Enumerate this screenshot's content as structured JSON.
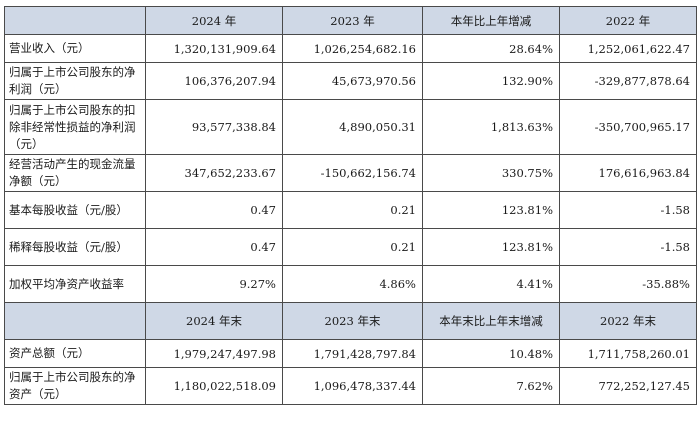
{
  "header_top": [
    "2024 年",
    "2023 年",
    "本年比上年增减",
    "2022 年"
  ],
  "rows_top": [
    {
      "label": "营业收入（元）",
      "v": [
        "1,320,131,909.64",
        "1,026,254,682.16",
        "28.64%",
        "1,252,061,622.47"
      ]
    },
    {
      "label": "归属于上市公司股东的净利润（元）",
      "v": [
        "106,376,207.94",
        "45,673,970.56",
        "132.90%",
        "-329,877,878.64"
      ]
    },
    {
      "label": "归属于上市公司股东的扣除非经常性损益的净利润（元）",
      "v": [
        "93,577,338.84",
        "4,890,050.31",
        "1,813.63%",
        "-350,700,965.17"
      ]
    },
    {
      "label": "经营活动产生的现金流量净额（元）",
      "v": [
        "347,652,233.67",
        "-150,662,156.74",
        "330.75%",
        "176,616,963.84"
      ]
    },
    {
      "label": "基本每股收益（元/股）",
      "v": [
        "0.47",
        "0.21",
        "123.81%",
        "-1.58"
      ]
    },
    {
      "label": "稀释每股收益（元/股）",
      "v": [
        "0.47",
        "0.21",
        "123.81%",
        "-1.58"
      ]
    },
    {
      "label": "加权平均净资产收益率",
      "v": [
        "9.27%",
        "4.86%",
        "4.41%",
        "-35.88%"
      ]
    }
  ],
  "header_bottom": [
    "2024 年末",
    "2023 年末",
    "本年末比上年末增减",
    "2022 年末"
  ],
  "rows_bottom": [
    {
      "label": "资产总额（元）",
      "v": [
        "1,979,247,497.98",
        "1,791,428,797.84",
        "10.48%",
        "1,711,758,260.01"
      ]
    },
    {
      "label": "归属于上市公司股东的净资产（元）",
      "v": [
        "1,180,022,518.09",
        "1,096,478,337.44",
        "7.62%",
        "772,252,127.45"
      ]
    }
  ]
}
